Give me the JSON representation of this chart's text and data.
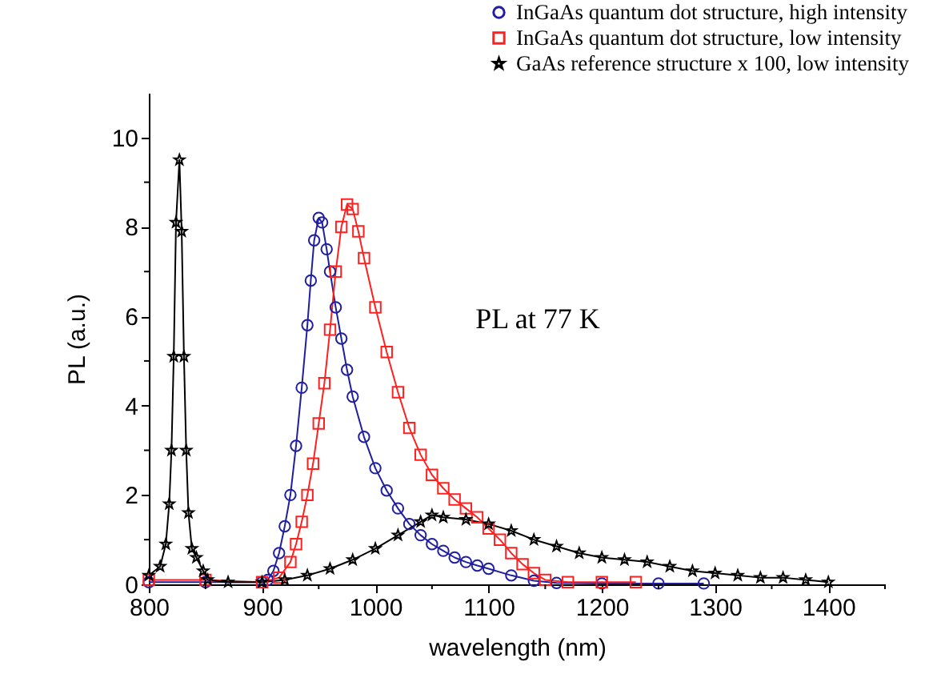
{
  "chart_data": {
    "type": "line",
    "xlabel": "wavelength (nm)",
    "ylabel": "PL (a.u.)",
    "annotations": [
      "PL at 77 K"
    ],
    "xlim": [
      800,
      1450
    ],
    "xticks": [
      800,
      {
        "value": 850,
        "label": null
      },
      900,
      {
        "value": 950,
        "label": null
      },
      1000,
      {
        "value": 1050,
        "label": null
      },
      1100,
      {
        "value": 1150,
        "label": null
      },
      1200,
      {
        "value": 1250,
        "label": null
      },
      1300,
      {
        "value": 1350,
        "label": null
      },
      1400,
      {
        "value": 1450,
        "label": null
      }
    ],
    "ylim": [
      0,
      11
    ],
    "yticks": [
      0,
      {
        "value": 1,
        "label": null
      },
      2,
      {
        "value": 3,
        "label": null
      },
      4,
      {
        "value": 5,
        "label": null
      },
      6,
      {
        "value": 7,
        "label": null
      },
      8,
      {
        "value": 9,
        "label": null
      },
      10
    ],
    "legend": "top right",
    "grid": false,
    "series": [
      {
        "name": "InGaAs quantum dot structure, high intensity",
        "color": "#1f1f9f",
        "marker": "circle",
        "x": [
          800,
          850,
          900,
          905,
          910,
          915,
          920,
          925,
          930,
          935,
          940,
          943,
          946,
          950,
          953,
          957,
          960,
          965,
          970,
          975,
          980,
          990,
          1000,
          1010,
          1020,
          1030,
          1040,
          1050,
          1060,
          1070,
          1080,
          1090,
          1100,
          1120,
          1140,
          1160,
          1200,
          1250,
          1290
        ],
        "values": [
          0.05,
          0.05,
          0.05,
          0.1,
          0.3,
          0.7,
          1.3,
          2.0,
          3.1,
          4.4,
          5.8,
          6.8,
          7.7,
          8.2,
          8.1,
          7.5,
          7.0,
          6.2,
          5.5,
          4.8,
          4.2,
          3.3,
          2.6,
          2.1,
          1.7,
          1.35,
          1.1,
          0.9,
          0.75,
          0.6,
          0.5,
          0.42,
          0.35,
          0.2,
          0.08,
          0.03,
          0.02,
          0.02,
          0.02
        ]
      },
      {
        "name": "InGaAs quantum dot structure, low intensity",
        "color": "#ff2020",
        "marker": "square",
        "x": [
          800,
          850,
          900,
          915,
          925,
          930,
          935,
          940,
          945,
          950,
          955,
          960,
          965,
          970,
          975,
          980,
          985,
          990,
          1000,
          1010,
          1020,
          1030,
          1040,
          1050,
          1060,
          1070,
          1080,
          1090,
          1100,
          1110,
          1120,
          1130,
          1140,
          1150,
          1170,
          1200,
          1230
        ],
        "values": [
          0.1,
          0.1,
          0.05,
          0.15,
          0.5,
          0.9,
          1.4,
          2.0,
          2.7,
          3.6,
          4.5,
          5.7,
          7.0,
          8.0,
          8.5,
          8.4,
          7.9,
          7.3,
          6.2,
          5.2,
          4.3,
          3.5,
          2.9,
          2.45,
          2.15,
          1.9,
          1.7,
          1.5,
          1.25,
          1.0,
          0.7,
          0.45,
          0.25,
          0.1,
          0.05,
          0.05,
          0.05
        ]
      },
      {
        "name": "GaAs reference structure x 100, low intensity",
        "color": "#000000",
        "marker": "star",
        "x": [
          800,
          810,
          815,
          818,
          820,
          822,
          824,
          827,
          829,
          831,
          833,
          835,
          838,
          842,
          848,
          852,
          870,
          900,
          920,
          940,
          960,
          980,
          1000,
          1020,
          1040,
          1050,
          1060,
          1080,
          1100,
          1120,
          1140,
          1160,
          1180,
          1200,
          1220,
          1240,
          1260,
          1280,
          1300,
          1320,
          1340,
          1360,
          1380,
          1400
        ],
        "values": [
          0.2,
          0.4,
          0.9,
          1.8,
          3.0,
          5.1,
          8.1,
          9.5,
          7.9,
          5.1,
          3.0,
          1.6,
          0.8,
          0.6,
          0.3,
          0.1,
          0.05,
          0.05,
          0.1,
          0.2,
          0.35,
          0.55,
          0.8,
          1.1,
          1.4,
          1.55,
          1.5,
          1.45,
          1.35,
          1.2,
          1.0,
          0.85,
          0.7,
          0.6,
          0.55,
          0.5,
          0.4,
          0.3,
          0.25,
          0.2,
          0.15,
          0.15,
          0.1,
          0.05
        ]
      }
    ]
  }
}
